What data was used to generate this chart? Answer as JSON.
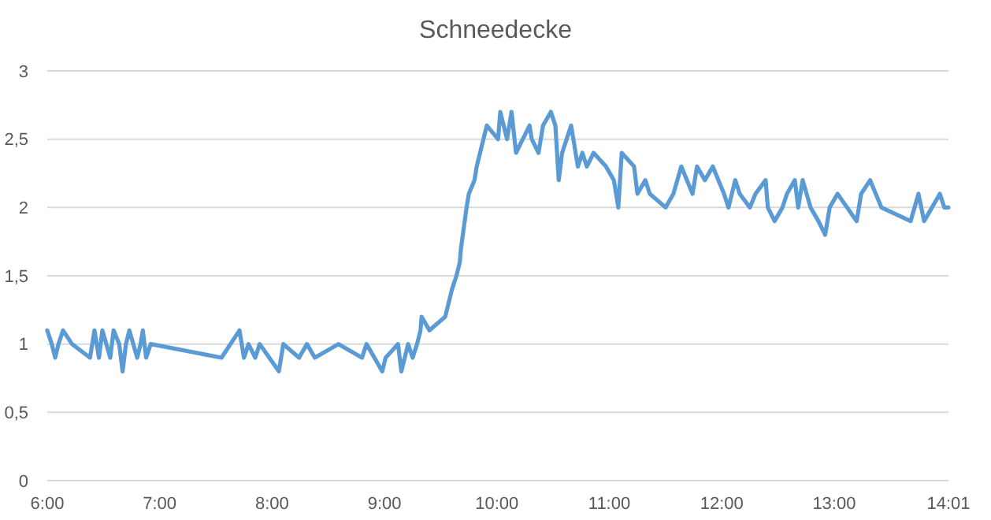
{
  "chart_data": {
    "type": "line",
    "title": "Schneedecke",
    "grid": "y",
    "color": "#5b9bd5",
    "xlim": [
      6,
      14.0167
    ],
    "ylim": [
      0,
      3
    ],
    "xticks": [
      {
        "value": 6,
        "label": "6:00"
      },
      {
        "value": 7,
        "label": "7:00"
      },
      {
        "value": 8,
        "label": "8:00"
      },
      {
        "value": 9,
        "label": "9:00"
      },
      {
        "value": 10,
        "label": "10:00"
      },
      {
        "value": 11,
        "label": "11:00"
      },
      {
        "value": 12,
        "label": "12:00"
      },
      {
        "value": 13,
        "label": "13:00"
      },
      {
        "value": 14.0167,
        "label": "14:01"
      }
    ],
    "yticks": [
      0,
      {
        "value": 0.5,
        "label": "0,5"
      },
      1,
      {
        "value": 1.5,
        "label": "1,5"
      },
      2,
      {
        "value": 2.5,
        "label": "2,5"
      },
      3
    ],
    "x": [
      6.0,
      6.04,
      6.07,
      6.1,
      6.14,
      6.22,
      6.38,
      6.42,
      6.46,
      6.49,
      6.56,
      6.59,
      6.64,
      6.67,
      6.7,
      6.73,
      6.8,
      6.83,
      6.85,
      6.88,
      6.92,
      7.55,
      7.71,
      7.75,
      7.79,
      7.85,
      7.89,
      8.06,
      8.1,
      8.24,
      8.31,
      8.38,
      8.59,
      8.8,
      8.84,
      8.98,
      9.01,
      9.12,
      9.15,
      9.21,
      9.25,
      9.29,
      9.32,
      9.33,
      9.4,
      9.54,
      9.6,
      9.64,
      9.67,
      9.68,
      9.73,
      9.75,
      9.8,
      9.82,
      9.88,
      9.91,
      10.01,
      10.03,
      10.09,
      10.13,
      10.17,
      10.23,
      10.29,
      10.31,
      10.37,
      10.41,
      10.48,
      10.52,
      10.55,
      10.58,
      10.62,
      10.66,
      10.72,
      10.76,
      10.8,
      10.86,
      10.97,
      11.04,
      11.08,
      11.11,
      11.22,
      11.25,
      11.32,
      11.36,
      11.5,
      11.57,
      11.64,
      11.74,
      11.78,
      11.85,
      11.92,
      12.02,
      12.06,
      12.12,
      12.16,
      12.25,
      12.3,
      12.39,
      12.41,
      12.47,
      12.54,
      12.58,
      12.65,
      12.68,
      12.72,
      12.79,
      12.86,
      12.92,
      12.96,
      13.03,
      13.2,
      13.24,
      13.32,
      13.37,
      13.42,
      13.68,
      13.75,
      13.8,
      13.87,
      13.94,
      13.98,
      14.0167
    ],
    "values": [
      1.1,
      1.0,
      0.9,
      1.0,
      1.1,
      1.0,
      0.9,
      1.1,
      0.9,
      1.1,
      0.9,
      1.1,
      1.0,
      0.8,
      1.0,
      1.1,
      0.9,
      1.0,
      1.1,
      0.9,
      1.0,
      0.9,
      1.1,
      0.9,
      1.0,
      0.9,
      1.0,
      0.8,
      1.0,
      0.9,
      1.0,
      0.9,
      1.0,
      0.9,
      1.0,
      0.8,
      0.9,
      1.0,
      0.8,
      1.0,
      0.9,
      1.0,
      1.1,
      1.2,
      1.1,
      1.2,
      1.4,
      1.5,
      1.6,
      1.7,
      2.0,
      2.1,
      2.2,
      2.3,
      2.5,
      2.6,
      2.5,
      2.7,
      2.5,
      2.7,
      2.4,
      2.5,
      2.6,
      2.5,
      2.4,
      2.6,
      2.7,
      2.6,
      2.2,
      2.4,
      2.5,
      2.6,
      2.3,
      2.4,
      2.3,
      2.4,
      2.3,
      2.2,
      2.0,
      2.4,
      2.3,
      2.1,
      2.2,
      2.1,
      2.0,
      2.1,
      2.3,
      2.1,
      2.3,
      2.2,
      2.3,
      2.1,
      2.0,
      2.2,
      2.1,
      2.0,
      2.1,
      2.2,
      2.0,
      1.9,
      2.0,
      2.1,
      2.2,
      2.0,
      2.2,
      2.0,
      1.9,
      1.8,
      2.0,
      2.1,
      1.9,
      2.1,
      2.2,
      2.1,
      2.0,
      1.9,
      2.1,
      1.9,
      2.0,
      2.1,
      2.0,
      2.0
    ]
  }
}
